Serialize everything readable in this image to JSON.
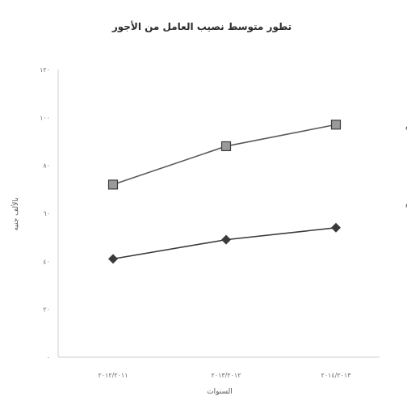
{
  "chart_data": {
    "type": "line",
    "title": "تطور متوسط نصيب العامل من الأجور",
    "xlabel": "السنوات",
    "ylabel": "بالألف جنيه",
    "categories": [
      "٢٠١٢/٢٠١١",
      "٢٠١٣/٢٠١٢",
      "٢٠١٤/٢٠١٣"
    ],
    "ylim": [
      0,
      120
    ],
    "yticks": [
      {
        "value": 0,
        "label": "٠"
      },
      {
        "value": 20,
        "label": "٢٠"
      },
      {
        "value": 40,
        "label": "٤٠"
      },
      {
        "value": 60,
        "label": "٦٠"
      },
      {
        "value": 80,
        "label": "٨٠"
      },
      {
        "value": 100,
        "label": "١٠٠"
      },
      {
        "value": 120,
        "label": "١٢٠"
      }
    ],
    "grid": false,
    "series": [
      {
        "name": "القطاع العام",
        "values": [
          72,
          88,
          97
        ],
        "marker": "square",
        "color": "#5a5a5a"
      },
      {
        "name": "قطاع الأعمال العام",
        "values": [
          41,
          49,
          54
        ],
        "marker": "diamond",
        "color": "#3a3a3a"
      }
    ]
  }
}
